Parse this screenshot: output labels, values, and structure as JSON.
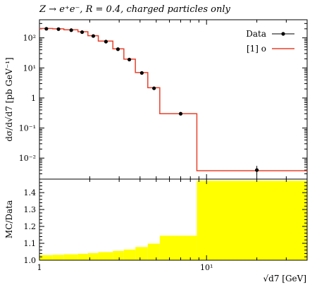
{
  "chart_data": {
    "type": "line",
    "title": "Z → e⁺e⁻, R = 0.4, charged particles only",
    "main_panel": {
      "ylabel": "dσ/d√d7 [pb GeV⁻¹]",
      "yscale": "log",
      "ylim": [
        0.002,
        400
      ],
      "xscale": "log",
      "xlim": [
        1,
        40
      ],
      "y_ticks": [
        {
          "value": 0.01,
          "label": "10⁻²"
        },
        {
          "value": 0.1,
          "label": "10⁻¹"
        },
        {
          "value": 1,
          "label": "1"
        },
        {
          "value": 10,
          "label": "10¹"
        },
        {
          "value": 100,
          "label": "10²"
        }
      ],
      "series": [
        {
          "name": "Data",
          "style": "points-with-errorbars",
          "color": "#000000",
          "x": [
            1.1,
            1.3,
            1.55,
            1.8,
            2.1,
            2.5,
            2.95,
            3.45,
            4.1,
            4.85,
            7.0,
            20.0
          ],
          "y": [
            200,
            195,
            180,
            155,
            115,
            75,
            42,
            19,
            6.8,
            2.1,
            0.3,
            0.004
          ],
          "yerr": [
            6,
            6,
            5,
            4,
            3,
            2,
            1.2,
            0.6,
            0.25,
            0.1,
            0.025,
            0.0015
          ]
        },
        {
          "name": "[1] o",
          "style": "step",
          "color": "#e8412c",
          "bin_edges": [
            1.0,
            1.2,
            1.4,
            1.7,
            1.95,
            2.25,
            2.75,
            3.2,
            3.75,
            4.45,
            5.25,
            8.75,
            40.0
          ],
          "values": [
            205,
            200,
            185,
            160,
            118,
            78,
            43,
            19.5,
            7,
            2.2,
            0.3,
            0.0038
          ]
        }
      ]
    },
    "ratio_panel": {
      "ylabel": "MC/Data",
      "ylim": [
        1.0,
        1.48
      ],
      "y_ticks": [
        {
          "value": 1.0,
          "label": "1.0"
        },
        {
          "value": 1.1,
          "label": "1.1"
        },
        {
          "value": 1.2,
          "label": "1.2"
        },
        {
          "value": 1.3,
          "label": "1.3"
        },
        {
          "value": 1.4,
          "label": "1.4"
        }
      ],
      "band_color": "#ffff00",
      "bin_edges": [
        1.0,
        1.2,
        1.4,
        1.7,
        1.95,
        2.25,
        2.75,
        3.2,
        3.75,
        4.45,
        5.25,
        8.75,
        40.0
      ],
      "band_upper": [
        1.03,
        1.032,
        1.035,
        1.038,
        1.042,
        1.048,
        1.055,
        1.063,
        1.078,
        1.098,
        1.145,
        1.47
      ]
    },
    "xlabel": "√d7 [GeV]",
    "x_ticks": [
      {
        "value": 1,
        "label": "1"
      },
      {
        "value": 10,
        "label": "10¹"
      }
    ],
    "legend": {
      "placement": "top-right",
      "entries": [
        {
          "label": "Data",
          "series": "Data"
        },
        {
          "label": "[1] o",
          "series": "[1] o"
        }
      ]
    }
  }
}
